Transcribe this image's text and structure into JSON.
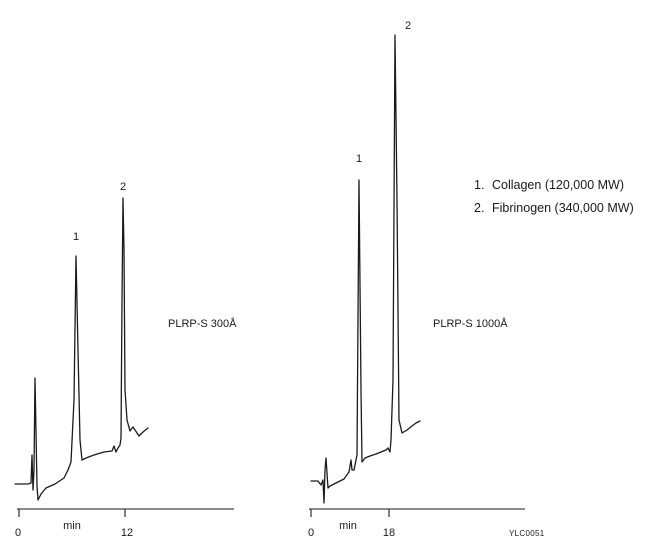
{
  "chart_data": [
    {
      "type": "line",
      "title": "",
      "column_label": "PLRP-S 300Å",
      "xlabel": "min",
      "x_ticks": [
        "0",
        "12"
      ],
      "peaks": [
        {
          "label": "1",
          "height": 0.78
        },
        {
          "label": "2",
          "height": 1.0
        }
      ]
    },
    {
      "type": "line",
      "title": "",
      "column_label": "PLRP-S 1000Å",
      "xlabel": "min",
      "x_ticks": [
        "0",
        "18"
      ],
      "peaks": [
        {
          "label": "1",
          "height": 0.66
        },
        {
          "label": "2",
          "height": 1.0
        }
      ]
    }
  ],
  "legend": {
    "items": [
      {
        "num": "1.",
        "text": "Collagen (120,000 MW)"
      },
      {
        "num": "2.",
        "text": "Fibrinogen (340,000 MW)"
      }
    ]
  },
  "figure_code": "YLC0051"
}
